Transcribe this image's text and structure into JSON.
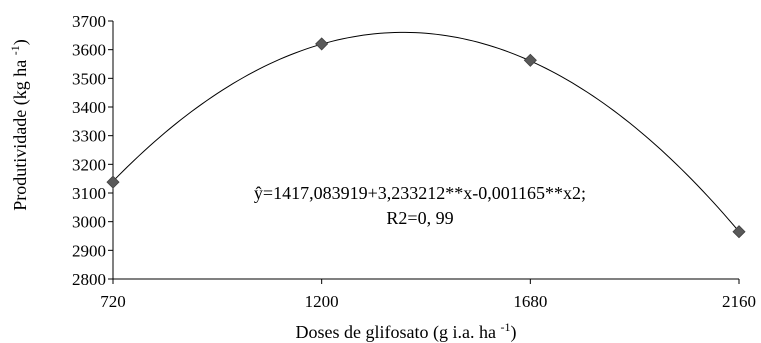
{
  "chart_data": {
    "type": "scatter",
    "x": [
      720,
      1200,
      1680,
      2160
    ],
    "y": [
      3138,
      3620,
      3563,
      2965
    ],
    "xticks": [
      "720",
      "1200",
      "1680",
      "2160"
    ],
    "yticks": [
      "2800",
      "2900",
      "3000",
      "3100",
      "3200",
      "3300",
      "3400",
      "3500",
      "3600",
      "3700"
    ],
    "xlim": [
      720,
      2160
    ],
    "ylim": [
      2800,
      3700
    ],
    "xlabel": "Doses de glifosato (g i.a. ha -1)",
    "ylabel": "Produtividade (kg ha -1)",
    "fit": {
      "type": "quadratic",
      "coefficients": [
        1417.083919,
        3.233212,
        -0.001165
      ]
    },
    "annotation": {
      "line1": "ŷ=1417,083919+3,233212**x-0,001165**x2;",
      "line2": "R2=0, 99"
    },
    "marker": "diamond",
    "marker_color": "#595959",
    "line_color": "#000000",
    "grid": false,
    "legend": "none"
  }
}
